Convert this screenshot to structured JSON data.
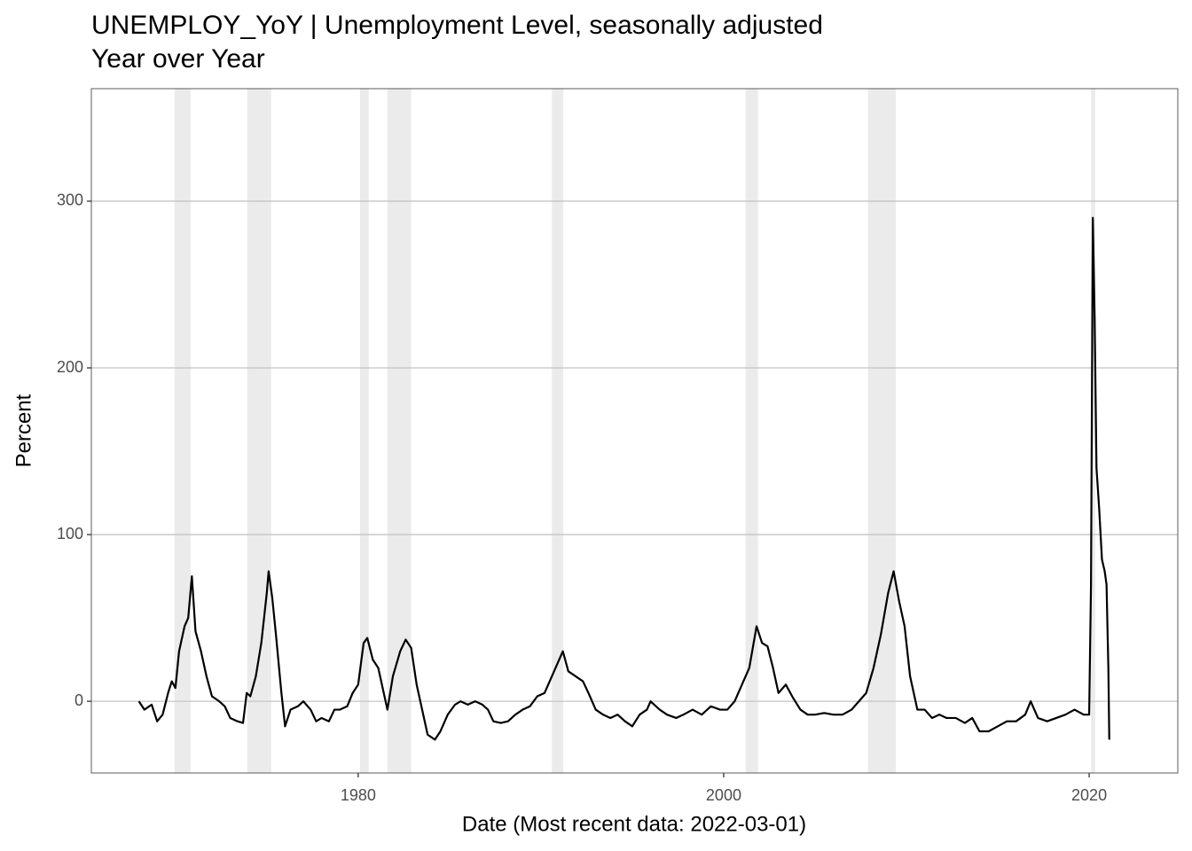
{
  "chart_data": {
    "type": "line",
    "title": "UNEMPLOY_YoY | Unemployment Level, seasonally adjusted",
    "subtitle": "Year over Year",
    "x_label": "Date (Most recent data: 2022-03-01)",
    "y_label": "Percent",
    "color": "#000000",
    "shade_color": "#ebebeb",
    "grid": true,
    "xlim": [
      1965.4,
      2024.85
    ],
    "ylim": [
      -43,
      367.5
    ],
    "xticks": [
      1980,
      2000,
      2020
    ],
    "yticks": [
      0,
      100,
      200,
      300
    ],
    "recessions": [
      [
        1969.95,
        1970.83
      ],
      [
        1973.93,
        1975.24
      ],
      [
        1980.1,
        1980.58
      ],
      [
        1981.6,
        1982.9
      ],
      [
        1990.6,
        1991.22
      ],
      [
        2001.2,
        2001.88
      ],
      [
        2007.9,
        2009.42
      ],
      [
        2020.1,
        2020.33
      ]
    ],
    "x": [
      1968.0,
      1968.3,
      1968.7,
      1969.0,
      1969.3,
      1969.6,
      1969.8,
      1970.0,
      1970.2,
      1970.5,
      1970.7,
      1970.9,
      1971.1,
      1971.4,
      1971.7,
      1972.0,
      1972.4,
      1972.7,
      1973.0,
      1973.4,
      1973.7,
      1973.9,
      1974.1,
      1974.4,
      1974.7,
      1975.0,
      1975.1,
      1975.3,
      1975.5,
      1975.8,
      1976.0,
      1976.3,
      1976.7,
      1977.0,
      1977.4,
      1977.7,
      1978.0,
      1978.4,
      1978.7,
      1979.0,
      1979.4,
      1979.7,
      1980.0,
      1980.3,
      1980.5,
      1980.8,
      1981.1,
      1981.4,
      1981.6,
      1981.9,
      1982.3,
      1982.6,
      1982.9,
      1983.2,
      1983.5,
      1983.8,
      1984.2,
      1984.5,
      1984.9,
      1985.3,
      1985.6,
      1986.0,
      1986.4,
      1986.8,
      1987.1,
      1987.4,
      1987.8,
      1988.2,
      1988.6,
      1989.0,
      1989.4,
      1989.8,
      1990.2,
      1990.6,
      1991.0,
      1991.2,
      1991.5,
      1991.9,
      1992.3,
      1992.6,
      1993.0,
      1993.4,
      1993.8,
      1994.2,
      1994.6,
      1995.0,
      1995.4,
      1995.8,
      1996.0,
      1996.5,
      1996.9,
      1997.4,
      1997.8,
      1998.3,
      1998.8,
      1999.3,
      1999.8,
      2000.2,
      2000.6,
      2001.0,
      2001.4,
      2001.8,
      2002.1,
      2002.4,
      2002.7,
      2003.0,
      2003.4,
      2003.8,
      2004.2,
      2004.6,
      2005.0,
      2005.5,
      2006.0,
      2006.5,
      2007.0,
      2007.4,
      2007.8,
      2008.2,
      2008.6,
      2009.0,
      2009.3,
      2009.6,
      2009.9,
      2010.2,
      2010.6,
      2011.0,
      2011.4,
      2011.8,
      2012.2,
      2012.7,
      2013.2,
      2013.6,
      2014.0,
      2014.5,
      2015.0,
      2015.5,
      2016.0,
      2016.5,
      2016.8,
      2017.2,
      2017.7,
      2018.2,
      2018.7,
      2019.2,
      2019.7,
      2020.0,
      2020.1,
      2020.2,
      2020.3,
      2020.4,
      2020.55,
      2020.7,
      2020.85,
      2020.95,
      2021.05,
      2021.1
    ],
    "values": [
      0,
      -5,
      -2,
      -12,
      -8,
      5,
      12,
      8,
      30,
      45,
      50,
      75,
      42,
      30,
      15,
      3,
      0,
      -3,
      -10,
      -12,
      -13,
      5,
      3,
      15,
      35,
      65,
      78,
      62,
      40,
      5,
      -15,
      -5,
      -3,
      0,
      -5,
      -12,
      -10,
      -12,
      -5,
      -5,
      -3,
      5,
      10,
      35,
      38,
      25,
      20,
      5,
      -5,
      15,
      30,
      37,
      32,
      10,
      -5,
      -20,
      -23,
      -18,
      -8,
      -2,
      0,
      -2,
      0,
      -2,
      -5,
      -12,
      -13,
      -12,
      -8,
      -5,
      -3,
      3,
      5,
      15,
      25,
      30,
      18,
      15,
      12,
      5,
      -5,
      -8,
      -10,
      -8,
      -12,
      -15,
      -8,
      -5,
      0,
      -5,
      -8,
      -10,
      -8,
      -5,
      -8,
      -3,
      -5,
      -5,
      0,
      10,
      20,
      45,
      35,
      33,
      20,
      5,
      10,
      2,
      -5,
      -8,
      -8,
      -7,
      -8,
      -8,
      -5,
      0,
      5,
      20,
      40,
      65,
      78,
      60,
      45,
      15,
      -5,
      -5,
      -10,
      -8,
      -10,
      -10,
      -13,
      -10,
      -18,
      -18,
      -15,
      -12,
      -12,
      -8,
      0,
      -10,
      -12,
      -10,
      -8,
      -5,
      -8,
      -8,
      70,
      290,
      230,
      140,
      115,
      85,
      78,
      70,
      20,
      -23
    ]
  }
}
